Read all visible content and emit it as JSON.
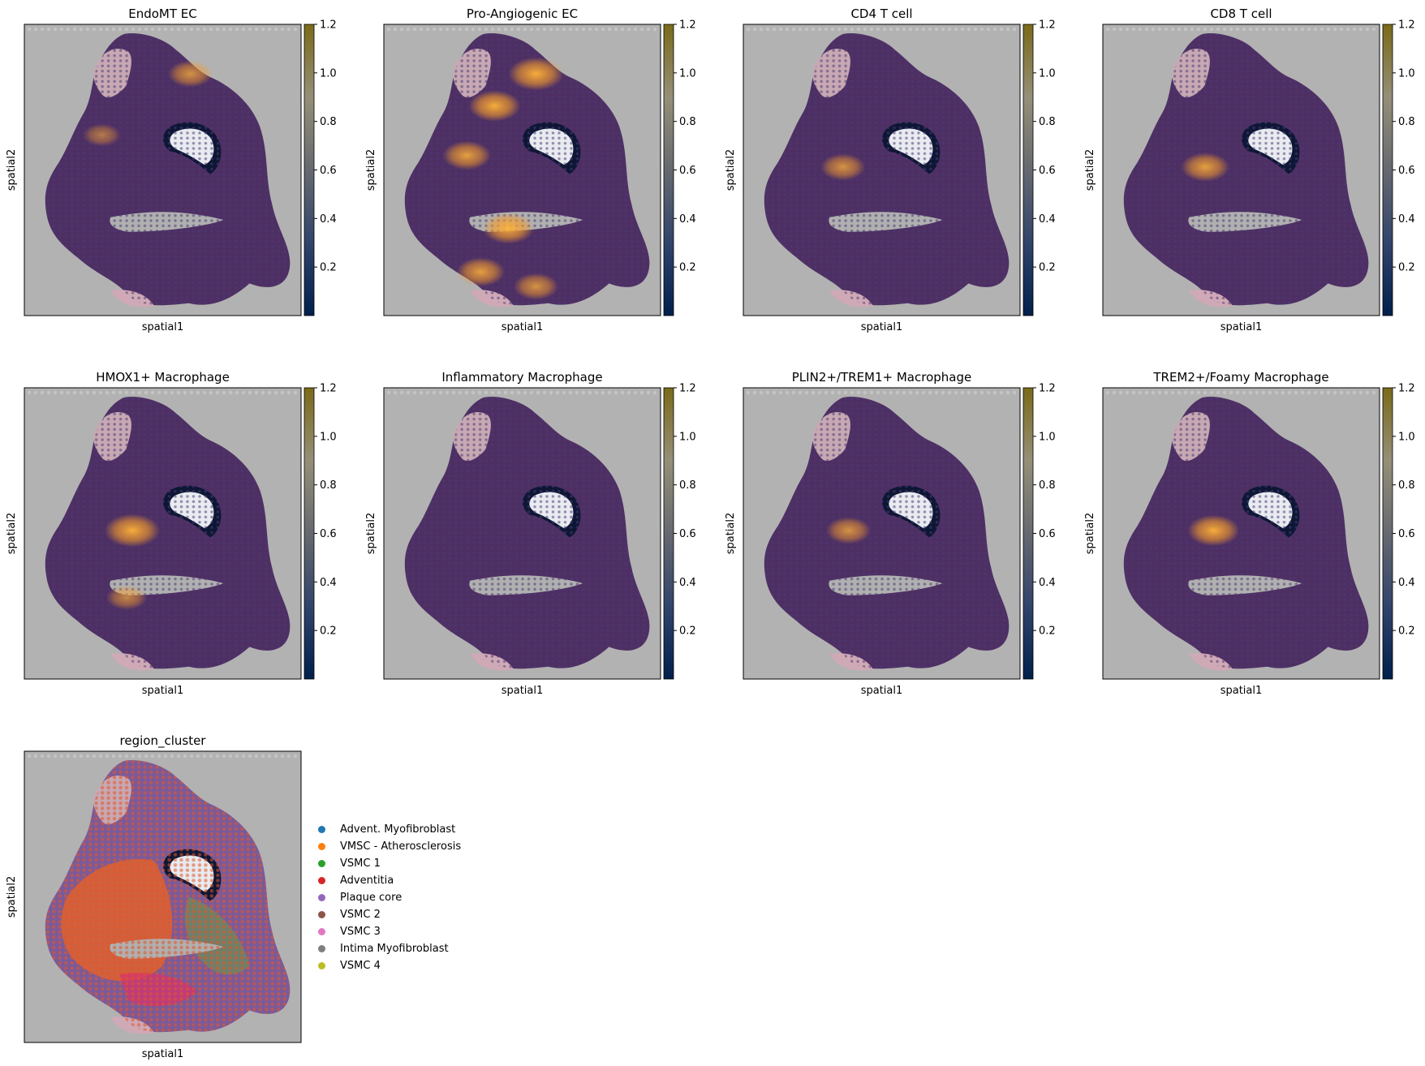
{
  "chart_data": [
    {
      "type": "heatmap",
      "title": "EndoMT EC",
      "xlabel": "spatial1",
      "ylabel": "spatial2",
      "colorbar": {
        "ticks": [
          "0.2",
          "0.4",
          "0.6",
          "0.8",
          "1.0",
          "1.2"
        ],
        "range": [
          0,
          1.2
        ]
      },
      "hotspots": [
        {
          "x": 0.6,
          "y": 0.17,
          "v": 0.8
        },
        {
          "x": 0.28,
          "y": 0.38,
          "v": 0.6
        }
      ]
    },
    {
      "type": "heatmap",
      "title": "Pro-Angiogenic EC",
      "xlabel": "spatial1",
      "ylabel": "spatial2",
      "colorbar": {
        "ticks": [
          "0.2",
          "0.4",
          "0.6",
          "0.8",
          "1.0",
          "1.2"
        ],
        "range": [
          0,
          1.2
        ]
      },
      "hotspots": [
        {
          "x": 0.55,
          "y": 0.17,
          "v": 1.1
        },
        {
          "x": 0.4,
          "y": 0.28,
          "v": 1.0
        },
        {
          "x": 0.3,
          "y": 0.45,
          "v": 0.9
        },
        {
          "x": 0.45,
          "y": 0.7,
          "v": 1.0
        },
        {
          "x": 0.35,
          "y": 0.85,
          "v": 0.9
        },
        {
          "x": 0.55,
          "y": 0.9,
          "v": 0.8
        }
      ]
    },
    {
      "type": "heatmap",
      "title": "CD4 T cell",
      "xlabel": "spatial1",
      "ylabel": "spatial2",
      "colorbar": {
        "ticks": [
          "0.2",
          "0.4",
          "0.6",
          "0.8",
          "1.0",
          "1.2"
        ],
        "range": [
          0,
          1.2
        ]
      },
      "hotspots": [
        {
          "x": 0.36,
          "y": 0.49,
          "v": 0.8
        }
      ]
    },
    {
      "type": "heatmap",
      "title": "CD8 T cell",
      "xlabel": "spatial1",
      "ylabel": "spatial2",
      "colorbar": {
        "ticks": [
          "0.2",
          "0.4",
          "0.6",
          "0.8",
          "1.0",
          "1.2"
        ],
        "range": [
          0,
          1.2
        ]
      },
      "hotspots": [
        {
          "x": 0.37,
          "y": 0.49,
          "v": 0.9
        }
      ]
    },
    {
      "type": "heatmap",
      "title": "HMOX1+ Macrophage",
      "xlabel": "spatial1",
      "ylabel": "spatial2",
      "colorbar": {
        "ticks": [
          "0.2",
          "0.4",
          "0.6",
          "0.8",
          "1.0",
          "1.2"
        ],
        "range": [
          0,
          1.2
        ]
      },
      "hotspots": [
        {
          "x": 0.39,
          "y": 0.49,
          "v": 1.1
        },
        {
          "x": 0.37,
          "y": 0.72,
          "v": 0.7
        }
      ]
    },
    {
      "type": "heatmap",
      "title": "Inflammatory Macrophage",
      "xlabel": "spatial1",
      "ylabel": "spatial2",
      "colorbar": {
        "ticks": [
          "0.2",
          "0.4",
          "0.6",
          "0.8",
          "1.0",
          "1.2"
        ],
        "range": [
          0,
          1.2
        ]
      },
      "hotspots": []
    },
    {
      "type": "heatmap",
      "title": "PLIN2+/TREM1+ Macrophage",
      "xlabel": "spatial1",
      "ylabel": "spatial2",
      "colorbar": {
        "ticks": [
          "0.2",
          "0.4",
          "0.6",
          "0.8",
          "1.0",
          "1.2"
        ],
        "range": [
          0,
          1.2
        ]
      },
      "hotspots": [
        {
          "x": 0.38,
          "y": 0.49,
          "v": 0.8
        }
      ]
    },
    {
      "type": "heatmap",
      "title": "TREM2+/Foamy Macrophage",
      "xlabel": "spatial1",
      "ylabel": "spatial2",
      "colorbar": {
        "ticks": [
          "0.2",
          "0.4",
          "0.6",
          "0.8",
          "1.0",
          "1.2"
        ],
        "range": [
          0,
          1.2
        ]
      },
      "hotspots": [
        {
          "x": 0.4,
          "y": 0.49,
          "v": 1.0
        }
      ]
    },
    {
      "type": "scatter",
      "title": "region_cluster",
      "xlabel": "spatial1",
      "ylabel": "spatial2",
      "legend": [
        {
          "name": "Advent. Myofibroblast",
          "color": "#1f77b4"
        },
        {
          "name": "VMSC - Atherosclerosis",
          "color": "#ff7f0e"
        },
        {
          "name": "VSMC 1",
          "color": "#2ca02c"
        },
        {
          "name": "Adventitia",
          "color": "#d62728"
        },
        {
          "name": "Plaque core",
          "color": "#9467bd"
        },
        {
          "name": "VSMC 2",
          "color": "#8c564b"
        },
        {
          "name": "VSMC 3",
          "color": "#e377c2"
        },
        {
          "name": "Intima Myofibroblast",
          "color": "#7f7f7f"
        },
        {
          "name": "VSMC 4",
          "color": "#bcbd22"
        }
      ]
    }
  ]
}
